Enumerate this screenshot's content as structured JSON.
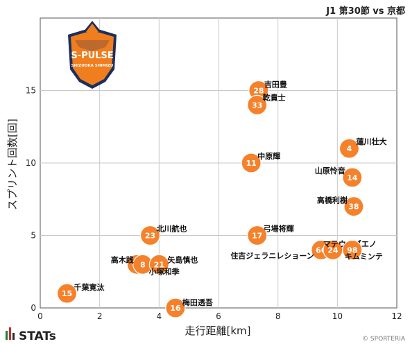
{
  "page": {
    "title": "J1 第30節 vs 京都",
    "brand": "STATs",
    "credit": "© SPORTERIA"
  },
  "colors": {
    "marker": "#f5812b",
    "marker_border": "#ffffff",
    "grid": "#c9c9c9",
    "logo_orange": "#f07d1e",
    "logo_navy": "#1c2f5c"
  },
  "logo": {
    "line1": "S-PULSE",
    "line2": "SHIZUOKA SHIMIZU"
  },
  "chart_data": {
    "type": "scatter",
    "xlabel": "走行距離[km]",
    "ylabel": "スプリント回数[回]",
    "xlim": [
      0,
      12
    ],
    "ylim": [
      0,
      20
    ],
    "xticks": [
      0,
      2,
      4,
      6,
      8,
      10,
      12
    ],
    "yticks": [
      0,
      5,
      10,
      15
    ],
    "grid": true,
    "points": [
      {
        "number": "28",
        "name": "吉田豊",
        "x": 7.35,
        "y": 15.0
      },
      {
        "number": "33",
        "name": "乾貴士",
        "x": 7.3,
        "y": 14.0
      },
      {
        "number": "4",
        "name": "蓮川壮大",
        "x": 10.4,
        "y": 11.0
      },
      {
        "number": "11",
        "name": "中原輝",
        "x": 7.1,
        "y": 10.0
      },
      {
        "number": "14",
        "name": "山原怜音",
        "x": 10.5,
        "y": 9.0
      },
      {
        "number": "38",
        "name": "高橋利樹",
        "x": 10.55,
        "y": 7.0
      },
      {
        "number": "23",
        "name": "北川航也",
        "x": 3.7,
        "y": 5.0
      },
      {
        "number": "17",
        "name": "弓場将輝",
        "x": 7.3,
        "y": 5.0
      },
      {
        "number": "66",
        "name": "住吉ジェラニレショーン",
        "x": 9.45,
        "y": 4.0
      },
      {
        "number": "24",
        "name": "マテウスブエノ",
        "x": 9.85,
        "y": 4.0
      },
      {
        "number": "98",
        "name": "キムミンテ",
        "x": 10.5,
        "y": 4.0
      },
      {
        "number": "7",
        "name": "",
        "x": 3.25,
        "y": 3.0
      },
      {
        "number": "8",
        "name": "高木践",
        "x": 3.45,
        "y": 3.0
      },
      {
        "number": "21",
        "name": "矢島慎也",
        "x": 4.0,
        "y": 3.0
      },
      {
        "number": "",
        "name": "小塚和季",
        "x": 3.75,
        "y": 3.0
      },
      {
        "number": "15",
        "name": "千葉寛汰",
        "x": 0.9,
        "y": 1.0
      },
      {
        "number": "16",
        "name": "梅田透吾",
        "x": 4.55,
        "y": 0.0
      }
    ]
  }
}
